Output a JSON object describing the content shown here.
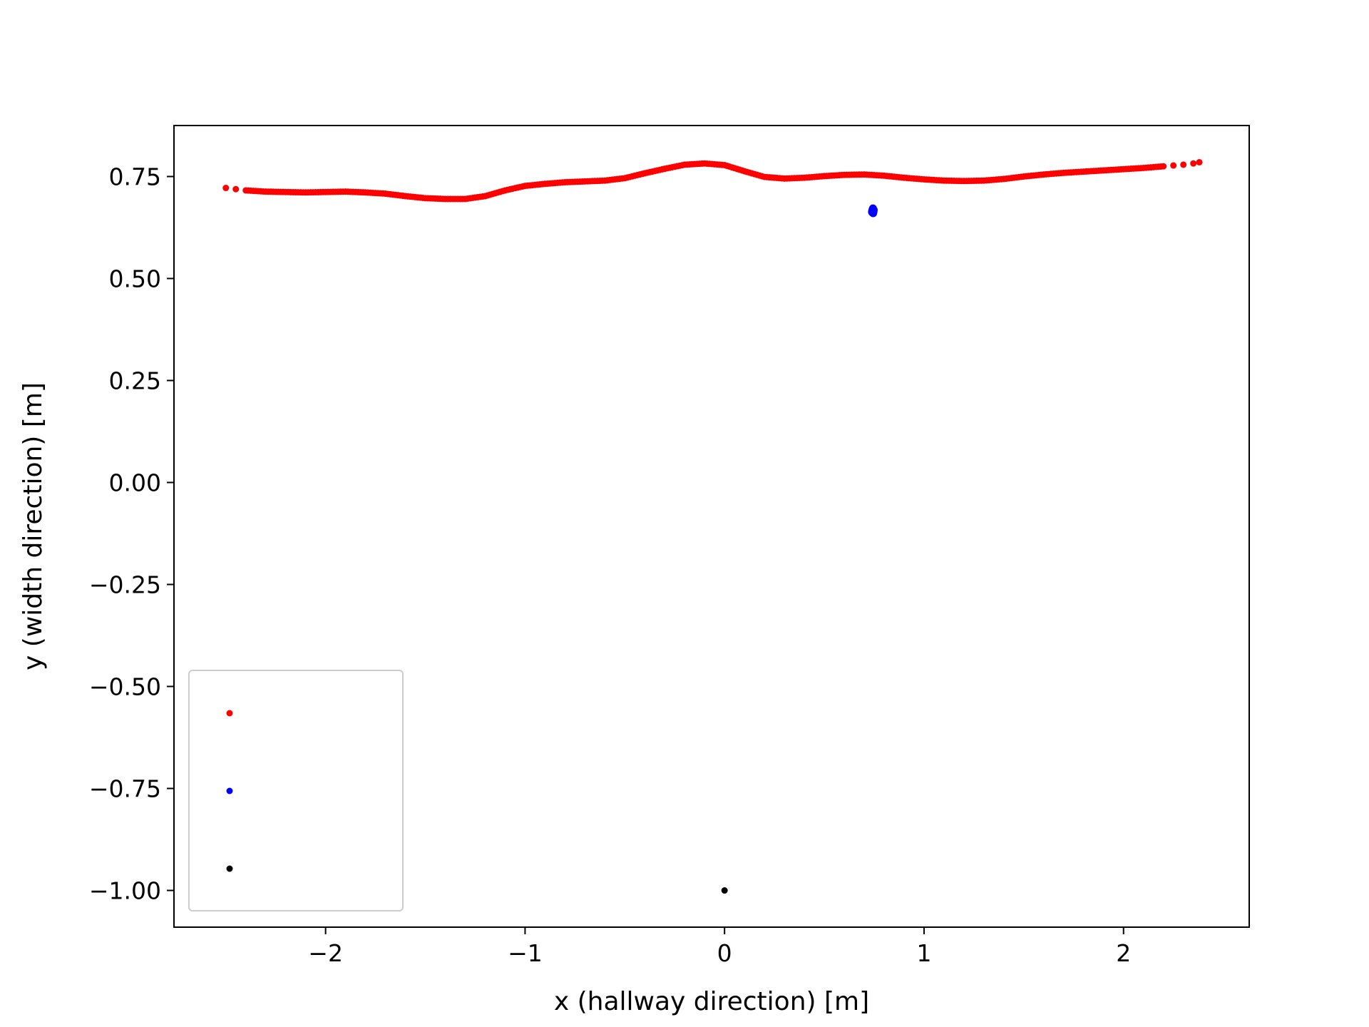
{
  "chart_data": {
    "type": "scatter",
    "title": "",
    "xlabel": "x (hallway direction) [m]",
    "ylabel": "y (width direction) [m]",
    "xlim": [
      -2.76,
      2.63
    ],
    "ylim": [
      -1.09,
      0.875
    ],
    "x_ticks": [
      {
        "value": -2,
        "label": "−2"
      },
      {
        "value": -1,
        "label": "−1"
      },
      {
        "value": 0,
        "label": "0"
      },
      {
        "value": 1,
        "label": "1"
      },
      {
        "value": 2,
        "label": "2"
      }
    ],
    "y_ticks": [
      {
        "value": 0.75,
        "label": "0.75"
      },
      {
        "value": 0.5,
        "label": "0.50"
      },
      {
        "value": 0.25,
        "label": "0.25"
      },
      {
        "value": 0.0,
        "label": "0.00"
      },
      {
        "value": -0.25,
        "label": "−0.25"
      },
      {
        "value": -0.5,
        "label": "−0.50"
      },
      {
        "value": -0.75,
        "label": "−0.75"
      },
      {
        "value": -1.0,
        "label": "−1.00"
      }
    ],
    "grid": false,
    "legend_position": "lower-left",
    "series": [
      {
        "color": "#ff0000",
        "marker": "point",
        "points": [
          [
            -2.5,
            0.722
          ],
          [
            -2.45,
            0.719
          ],
          [
            -2.4,
            0.716
          ],
          [
            -2.3,
            0.713
          ],
          [
            -2.2,
            0.712
          ],
          [
            -2.1,
            0.711
          ],
          [
            -2.0,
            0.712
          ],
          [
            -1.9,
            0.713
          ],
          [
            -1.8,
            0.711
          ],
          [
            -1.7,
            0.708
          ],
          [
            -1.6,
            0.702
          ],
          [
            -1.5,
            0.697
          ],
          [
            -1.4,
            0.695
          ],
          [
            -1.3,
            0.695
          ],
          [
            -1.2,
            0.702
          ],
          [
            -1.1,
            0.716
          ],
          [
            -1.0,
            0.727
          ],
          [
            -0.9,
            0.732
          ],
          [
            -0.8,
            0.736
          ],
          [
            -0.7,
            0.738
          ],
          [
            -0.6,
            0.74
          ],
          [
            -0.5,
            0.746
          ],
          [
            -0.4,
            0.758
          ],
          [
            -0.3,
            0.769
          ],
          [
            -0.2,
            0.779
          ],
          [
            -0.1,
            0.782
          ],
          [
            0.0,
            0.778
          ],
          [
            0.1,
            0.763
          ],
          [
            0.2,
            0.749
          ],
          [
            0.3,
            0.745
          ],
          [
            0.4,
            0.747
          ],
          [
            0.5,
            0.751
          ],
          [
            0.6,
            0.754
          ],
          [
            0.7,
            0.755
          ],
          [
            0.8,
            0.752
          ],
          [
            0.9,
            0.747
          ],
          [
            1.0,
            0.743
          ],
          [
            1.1,
            0.74
          ],
          [
            1.2,
            0.739
          ],
          [
            1.3,
            0.74
          ],
          [
            1.4,
            0.744
          ],
          [
            1.5,
            0.75
          ],
          [
            1.6,
            0.755
          ],
          [
            1.7,
            0.759
          ],
          [
            1.8,
            0.762
          ],
          [
            1.9,
            0.765
          ],
          [
            2.0,
            0.768
          ],
          [
            2.1,
            0.771
          ],
          [
            2.2,
            0.775
          ],
          [
            2.25,
            0.777
          ],
          [
            2.3,
            0.779
          ],
          [
            2.35,
            0.782
          ],
          [
            2.38,
            0.785
          ]
        ]
      },
      {
        "color": "#0000ff",
        "marker": "point",
        "points": [
          [
            0.74,
            0.662
          ],
          [
            0.742,
            0.665
          ],
          [
            0.745,
            0.667
          ],
          [
            0.743,
            0.67
          ],
          [
            0.747,
            0.664
          ],
          [
            0.745,
            0.66
          ],
          [
            0.741,
            0.668
          ],
          [
            0.748,
            0.668
          ],
          [
            0.744,
            0.672
          ],
          [
            0.739,
            0.664
          ]
        ]
      },
      {
        "color": "#000000",
        "marker": "point",
        "points": [
          [
            0.0,
            -1.0
          ]
        ]
      }
    ],
    "legend": [
      {
        "color": "#ff0000"
      },
      {
        "color": "#0000ff"
      },
      {
        "color": "#000000"
      }
    ]
  }
}
